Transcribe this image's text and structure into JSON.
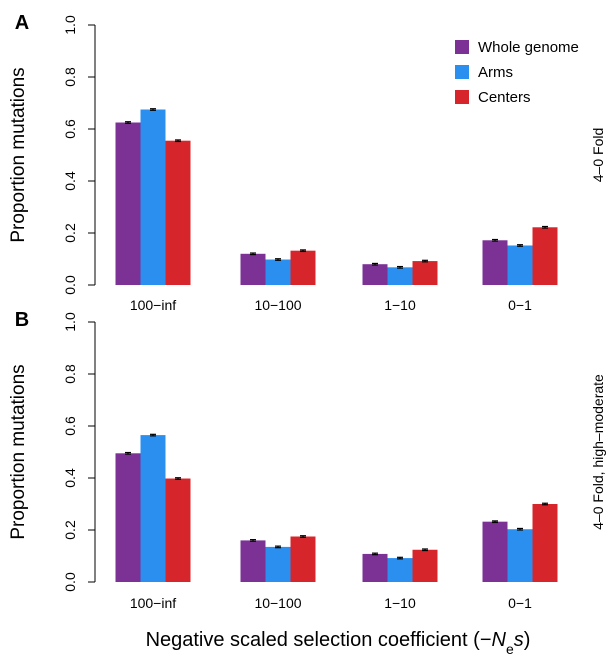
{
  "chart_data": [
    {
      "type": "bar",
      "panel": "A",
      "ylabel": "Proportion mutations",
      "side_label": "4–0 Fold",
      "categories": [
        "100−inf",
        "10−100",
        "1−10",
        "0−1"
      ],
      "ylim": [
        0,
        1
      ],
      "yticks": [
        {
          "value": 0,
          "label": "0.0"
        },
        0.2,
        0.4,
        0.6,
        0.8,
        {
          "value": 1,
          "label": "1.0"
        }
      ],
      "legend": "top-right",
      "series": [
        {
          "name": "Whole genome",
          "color": "#7b3294",
          "values": [
            0.625,
            0.12,
            0.08,
            0.172
          ],
          "errors": [
            0.003,
            0.003,
            0.003,
            0.003
          ]
        },
        {
          "name": "Arms",
          "color": "#2b8ff0",
          "values": [
            0.675,
            0.098,
            0.068,
            0.152
          ],
          "errors": [
            0.003,
            0.003,
            0.003,
            0.003
          ]
        },
        {
          "name": "Centers",
          "color": "#d7262b",
          "values": [
            0.555,
            0.132,
            0.092,
            0.222
          ],
          "errors": [
            0.003,
            0.003,
            0.003,
            0.003
          ]
        }
      ]
    },
    {
      "type": "bar",
      "panel": "B",
      "ylabel": "Proportion mutations",
      "side_label": "4–0 Fold, high–moderate",
      "categories": [
        "100−inf",
        "10−100",
        "1−10",
        "0−1"
      ],
      "ylim": [
        0,
        1
      ],
      "yticks": [
        {
          "value": 0,
          "label": "0.0"
        },
        0.2,
        0.4,
        0.6,
        0.8,
        {
          "value": 1,
          "label": "1.0"
        }
      ],
      "xlabel_parts": [
        "Negative scaled selection coefficient (−",
        "N",
        "e",
        "s",
        ")"
      ],
      "series": [
        {
          "color": "#7b3294",
          "values": [
            0.495,
            0.16,
            0.108,
            0.232
          ],
          "errors": [
            0.003,
            0.003,
            0.003,
            0.003
          ]
        },
        {
          "color": "#2b8ff0",
          "values": [
            0.565,
            0.135,
            0.092,
            0.203
          ],
          "errors": [
            0.003,
            0.003,
            0.003,
            0.003
          ]
        },
        {
          "color": "#d7262b",
          "values": [
            0.398,
            0.175,
            0.124,
            0.3
          ],
          "errors": [
            0.003,
            0.003,
            0.003,
            0.003
          ]
        }
      ]
    }
  ]
}
